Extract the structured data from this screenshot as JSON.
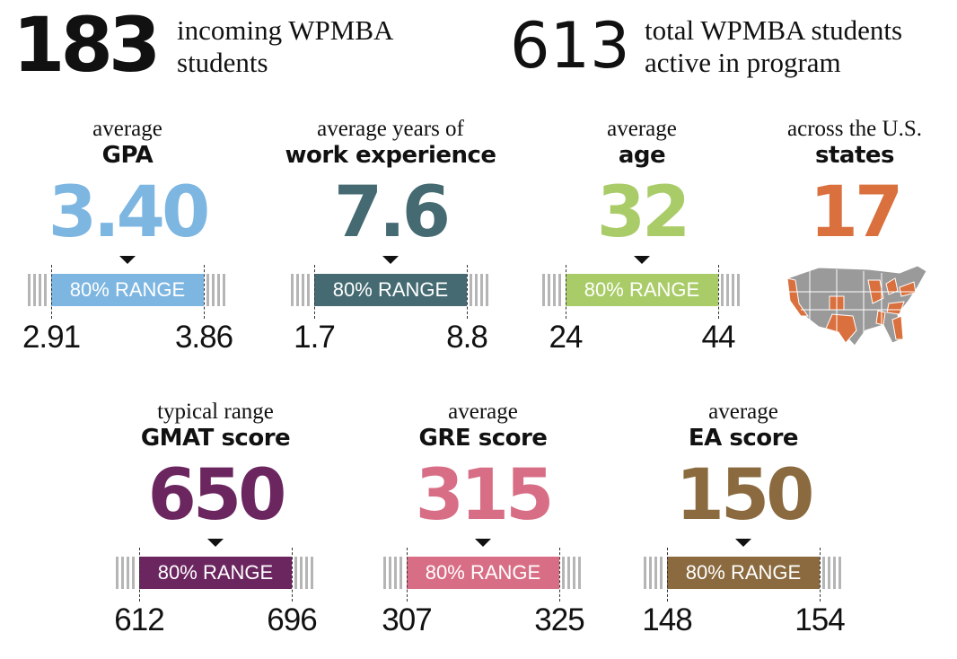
{
  "header": [
    {
      "number": "183",
      "text": "incoming WPMBA students"
    },
    {
      "number": "613",
      "text": "total WPMBA students active in program"
    }
  ],
  "stats": [
    {
      "label": "average",
      "title": "GPA",
      "value": "3.40",
      "range_label": "80% RANGE",
      "low": "2.91",
      "high": "3.86",
      "color": "#7db6e1"
    },
    {
      "label": "average years of",
      "title": "work experience",
      "value": "7.6",
      "range_label": "80% RANGE",
      "low": "1.7",
      "high": "8.8",
      "color": "#456a72"
    },
    {
      "label": "average",
      "title": "age",
      "value": "32",
      "range_label": "80% RANGE",
      "low": "24",
      "high": "44",
      "color": "#a9cc68"
    },
    {
      "label": "typical range",
      "title": "GMAT score",
      "value": "650",
      "range_label": "80% RANGE",
      "low": "612",
      "high": "696",
      "color": "#6b2660"
    },
    {
      "label": "average",
      "title": "GRE score",
      "value": "315",
      "range_label": "80% RANGE",
      "low": "307",
      "high": "325",
      "color": "#d86e85"
    },
    {
      "label": "average",
      "title": "EA score",
      "value": "150",
      "range_label": "80% RANGE",
      "low": "148",
      "high": "154",
      "color": "#8a6a3e"
    }
  ],
  "states": {
    "label": "across the U.S.",
    "title": "states",
    "value": "17",
    "color": "#d9703e"
  }
}
